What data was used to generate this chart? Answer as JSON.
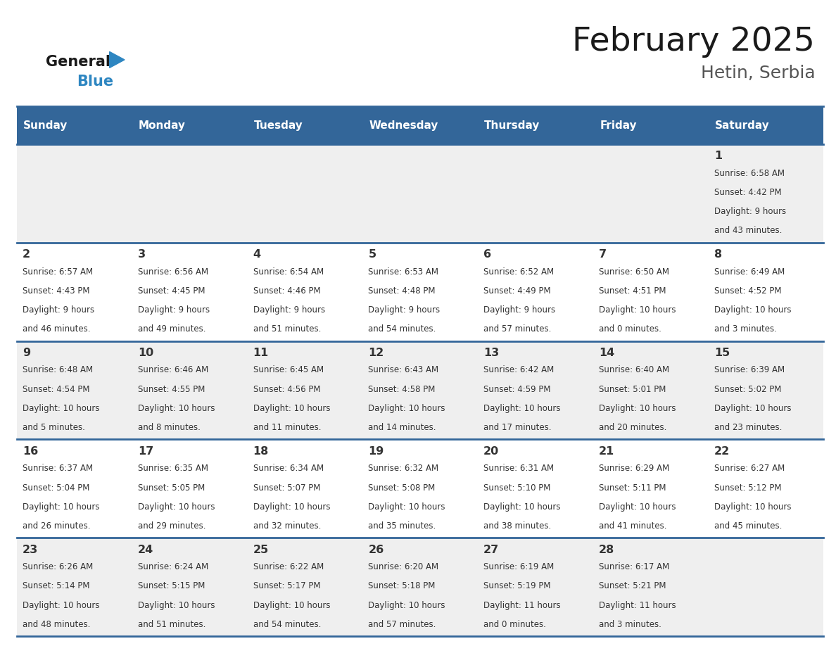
{
  "title": "February 2025",
  "subtitle": "Hetin, Serbia",
  "days_of_week": [
    "Sunday",
    "Monday",
    "Tuesday",
    "Wednesday",
    "Thursday",
    "Friday",
    "Saturday"
  ],
  "header_bg": "#336699",
  "header_text_color": "#FFFFFF",
  "cell_bg_odd": "#EFEFEF",
  "cell_bg_even": "#FFFFFF",
  "border_color": "#336699",
  "day_number_color": "#333333",
  "info_text_color": "#333333",
  "title_color": "#1A1A1A",
  "subtitle_color": "#555555",
  "logo_black": "#1A1A1A",
  "logo_blue": "#2E86C1",
  "weeks": [
    [
      {
        "day": "",
        "info": ""
      },
      {
        "day": "",
        "info": ""
      },
      {
        "day": "",
        "info": ""
      },
      {
        "day": "",
        "info": ""
      },
      {
        "day": "",
        "info": ""
      },
      {
        "day": "",
        "info": ""
      },
      {
        "day": "1",
        "info": "Sunrise: 6:58 AM\nSunset: 4:42 PM\nDaylight: 9 hours\nand 43 minutes."
      }
    ],
    [
      {
        "day": "2",
        "info": "Sunrise: 6:57 AM\nSunset: 4:43 PM\nDaylight: 9 hours\nand 46 minutes."
      },
      {
        "day": "3",
        "info": "Sunrise: 6:56 AM\nSunset: 4:45 PM\nDaylight: 9 hours\nand 49 minutes."
      },
      {
        "day": "4",
        "info": "Sunrise: 6:54 AM\nSunset: 4:46 PM\nDaylight: 9 hours\nand 51 minutes."
      },
      {
        "day": "5",
        "info": "Sunrise: 6:53 AM\nSunset: 4:48 PM\nDaylight: 9 hours\nand 54 minutes."
      },
      {
        "day": "6",
        "info": "Sunrise: 6:52 AM\nSunset: 4:49 PM\nDaylight: 9 hours\nand 57 minutes."
      },
      {
        "day": "7",
        "info": "Sunrise: 6:50 AM\nSunset: 4:51 PM\nDaylight: 10 hours\nand 0 minutes."
      },
      {
        "day": "8",
        "info": "Sunrise: 6:49 AM\nSunset: 4:52 PM\nDaylight: 10 hours\nand 3 minutes."
      }
    ],
    [
      {
        "day": "9",
        "info": "Sunrise: 6:48 AM\nSunset: 4:54 PM\nDaylight: 10 hours\nand 5 minutes."
      },
      {
        "day": "10",
        "info": "Sunrise: 6:46 AM\nSunset: 4:55 PM\nDaylight: 10 hours\nand 8 minutes."
      },
      {
        "day": "11",
        "info": "Sunrise: 6:45 AM\nSunset: 4:56 PM\nDaylight: 10 hours\nand 11 minutes."
      },
      {
        "day": "12",
        "info": "Sunrise: 6:43 AM\nSunset: 4:58 PM\nDaylight: 10 hours\nand 14 minutes."
      },
      {
        "day": "13",
        "info": "Sunrise: 6:42 AM\nSunset: 4:59 PM\nDaylight: 10 hours\nand 17 minutes."
      },
      {
        "day": "14",
        "info": "Sunrise: 6:40 AM\nSunset: 5:01 PM\nDaylight: 10 hours\nand 20 minutes."
      },
      {
        "day": "15",
        "info": "Sunrise: 6:39 AM\nSunset: 5:02 PM\nDaylight: 10 hours\nand 23 minutes."
      }
    ],
    [
      {
        "day": "16",
        "info": "Sunrise: 6:37 AM\nSunset: 5:04 PM\nDaylight: 10 hours\nand 26 minutes."
      },
      {
        "day": "17",
        "info": "Sunrise: 6:35 AM\nSunset: 5:05 PM\nDaylight: 10 hours\nand 29 minutes."
      },
      {
        "day": "18",
        "info": "Sunrise: 6:34 AM\nSunset: 5:07 PM\nDaylight: 10 hours\nand 32 minutes."
      },
      {
        "day": "19",
        "info": "Sunrise: 6:32 AM\nSunset: 5:08 PM\nDaylight: 10 hours\nand 35 minutes."
      },
      {
        "day": "20",
        "info": "Sunrise: 6:31 AM\nSunset: 5:10 PM\nDaylight: 10 hours\nand 38 minutes."
      },
      {
        "day": "21",
        "info": "Sunrise: 6:29 AM\nSunset: 5:11 PM\nDaylight: 10 hours\nand 41 minutes."
      },
      {
        "day": "22",
        "info": "Sunrise: 6:27 AM\nSunset: 5:12 PM\nDaylight: 10 hours\nand 45 minutes."
      }
    ],
    [
      {
        "day": "23",
        "info": "Sunrise: 6:26 AM\nSunset: 5:14 PM\nDaylight: 10 hours\nand 48 minutes."
      },
      {
        "day": "24",
        "info": "Sunrise: 6:24 AM\nSunset: 5:15 PM\nDaylight: 10 hours\nand 51 minutes."
      },
      {
        "day": "25",
        "info": "Sunrise: 6:22 AM\nSunset: 5:17 PM\nDaylight: 10 hours\nand 54 minutes."
      },
      {
        "day": "26",
        "info": "Sunrise: 6:20 AM\nSunset: 5:18 PM\nDaylight: 10 hours\nand 57 minutes."
      },
      {
        "day": "27",
        "info": "Sunrise: 6:19 AM\nSunset: 5:19 PM\nDaylight: 11 hours\nand 0 minutes."
      },
      {
        "day": "28",
        "info": "Sunrise: 6:17 AM\nSunset: 5:21 PM\nDaylight: 11 hours\nand 3 minutes."
      },
      {
        "day": "",
        "info": ""
      }
    ]
  ]
}
